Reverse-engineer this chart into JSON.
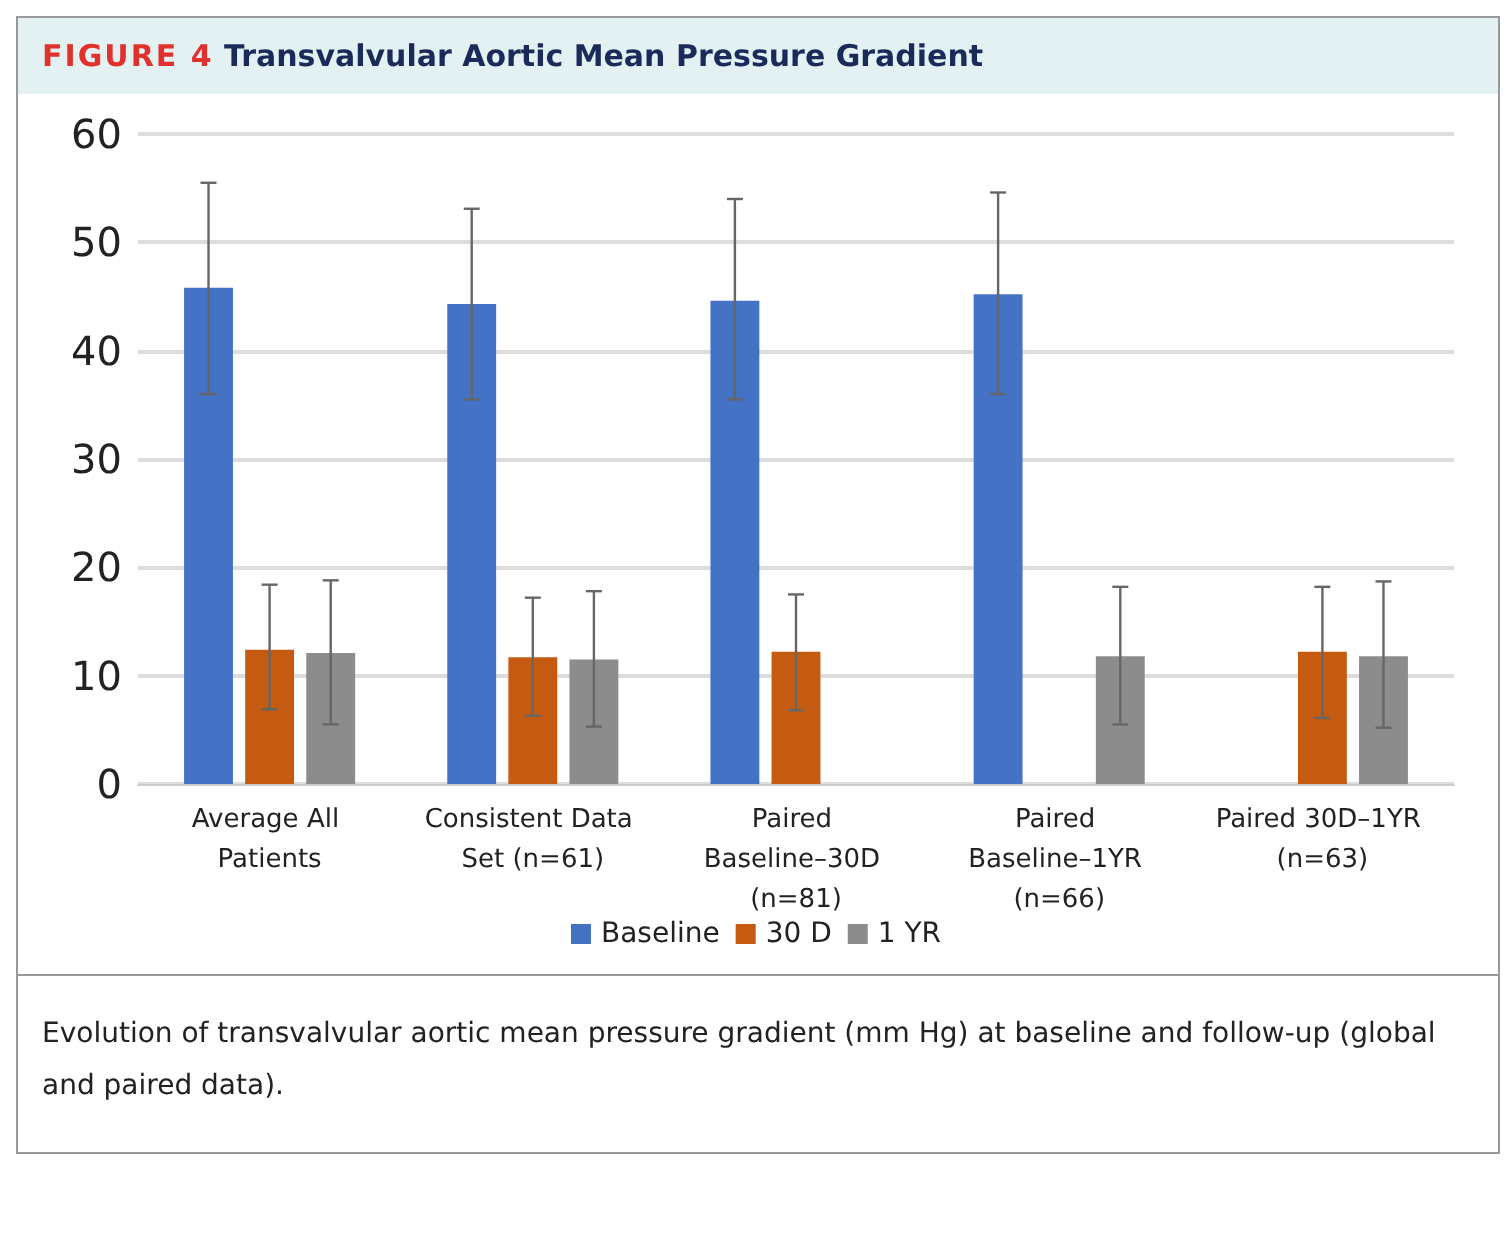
{
  "chart_data": {
    "type": "bar",
    "title": "FIGURE 4  Transvalvular Aortic Mean Pressure Gradient",
    "categories": [
      "Average All Patients",
      "Consistent Data Set (n=61)",
      "Paired Baseline–30D (n=81)",
      "Paired Baseline–1YR (n=66)",
      "Paired 30D–1YR (n=63)"
    ],
    "series": [
      {
        "name": "Baseline",
        "color": "#4472c4",
        "values": [
          45.8,
          44.3,
          44.6,
          45.2,
          null
        ],
        "errors": [
          [
            36.0,
            55.5
          ],
          [
            35.5,
            53.1
          ],
          [
            35.5,
            54.0
          ],
          [
            36.0,
            54.6
          ],
          null
        ]
      },
      {
        "name": "30 D",
        "color": "#c55a11",
        "values": [
          12.4,
          11.7,
          12.2,
          null,
          12.2
        ],
        "errors": [
          [
            6.9,
            18.4
          ],
          [
            6.3,
            17.2
          ],
          [
            6.8,
            17.5
          ],
          null,
          [
            6.1,
            18.2
          ]
        ]
      },
      {
        "name": "1 YR",
        "color": "#8c8c8c",
        "values": [
          12.1,
          11.5,
          null,
          11.8,
          11.8
        ],
        "errors": [
          [
            5.5,
            18.8
          ],
          [
            5.3,
            17.8
          ],
          null,
          [
            5.5,
            18.2
          ],
          [
            5.2,
            18.7
          ]
        ]
      }
    ],
    "ylim": [
      0,
      60
    ],
    "yticks": [
      0,
      10,
      20,
      30,
      40,
      50,
      60
    ],
    "grid": "y",
    "legend": "bottom",
    "annotations": [
      "Evolution of transvalvular aortic mean pressure gradient (mm Hg) at baseline and follow-up (global and paired data)."
    ]
  }
}
